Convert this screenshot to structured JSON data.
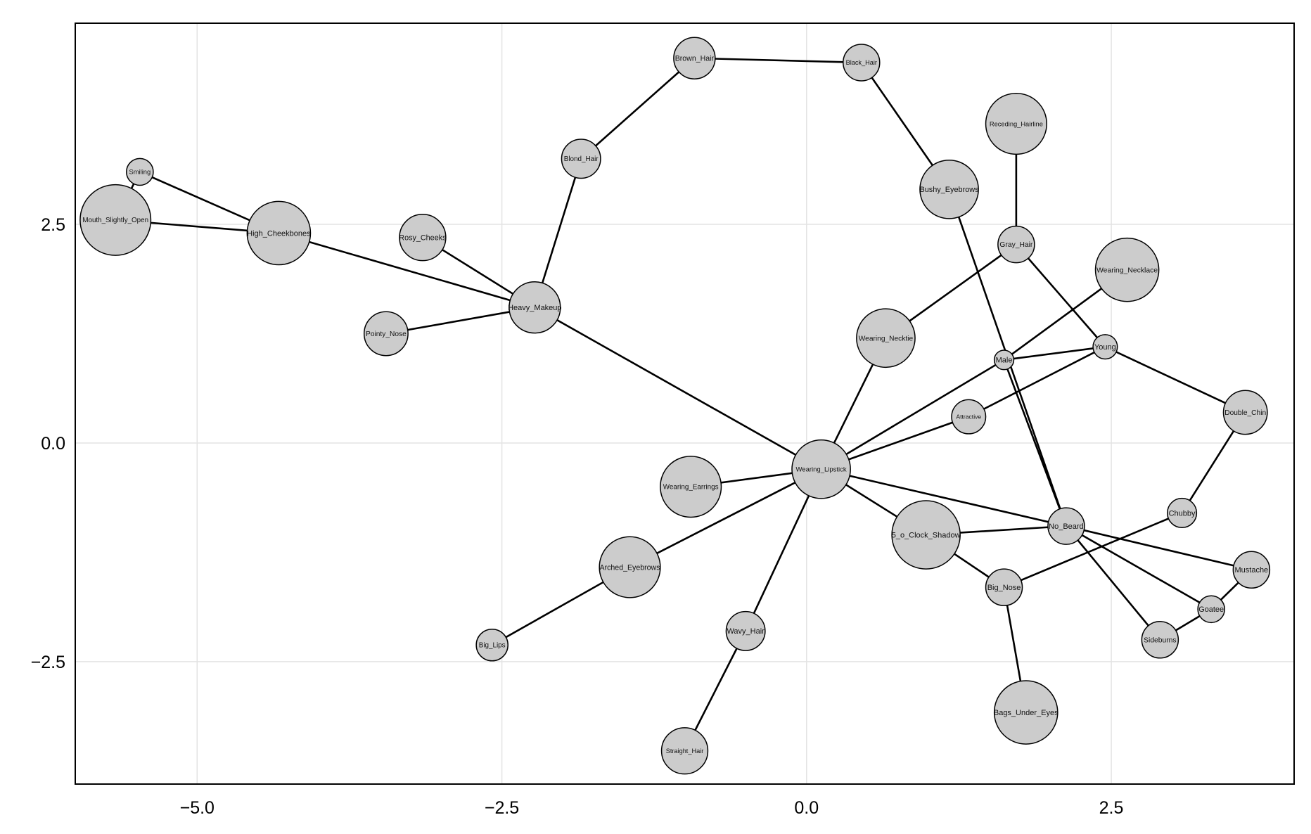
{
  "chart_data": {
    "type": "network",
    "title": "",
    "xlabel": "",
    "ylabel": "",
    "xlim": [
      -6.0,
      4.0
    ],
    "ylim": [
      -3.9,
      4.8
    ],
    "xticks": [
      -5.0,
      -2.5,
      0.0,
      2.5
    ],
    "yticks": [
      -2.5,
      0.0,
      2.5
    ],
    "xtick_labels": [
      "−5.0",
      "−2.5",
      "0.0",
      "2.5"
    ],
    "ytick_labels": [
      "−2.5",
      "0.0",
      "2.5"
    ],
    "grid": true,
    "colors": {
      "node_fill": "#cccccc",
      "node_stroke": "#000000",
      "edge": "#000000",
      "grid": "#e3e3e3"
    },
    "nodes": [
      {
        "id": "Mouth_Slightly_Open",
        "x": -5.67,
        "y": 2.55,
        "size": 0.29
      },
      {
        "id": "Smiling",
        "x": -5.47,
        "y": 3.1,
        "size": 0.11
      },
      {
        "id": "High_Cheekbones",
        "x": -4.33,
        "y": 2.4,
        "size": 0.26
      },
      {
        "id": "Rosy_Cheeks",
        "x": -3.15,
        "y": 2.35,
        "size": 0.19
      },
      {
        "id": "Pointy_Nose",
        "x": -3.45,
        "y": 1.25,
        "size": 0.18
      },
      {
        "id": "Heavy_Makeup",
        "x": -2.23,
        "y": 1.55,
        "size": 0.21
      },
      {
        "id": "Blond_Hair",
        "x": -1.85,
        "y": 3.25,
        "size": 0.16
      },
      {
        "id": "Brown_Hair",
        "x": -0.92,
        "y": 4.4,
        "size": 0.17
      },
      {
        "id": "Black_Hair",
        "x": 0.45,
        "y": 4.35,
        "size": 0.15
      },
      {
        "id": "Receding_Hairline",
        "x": 1.72,
        "y": 3.65,
        "size": 0.25
      },
      {
        "id": "Bushy_Eyebrows",
        "x": 1.17,
        "y": 2.9,
        "size": 0.24
      },
      {
        "id": "Gray_Hair",
        "x": 1.72,
        "y": 2.27,
        "size": 0.15
      },
      {
        "id": "Wearing_Necklace",
        "x": 2.63,
        "y": 1.98,
        "size": 0.26
      },
      {
        "id": "Wearing_Necktie",
        "x": 0.65,
        "y": 1.2,
        "size": 0.24
      },
      {
        "id": "Male",
        "x": 1.62,
        "y": 0.95,
        "size": 0.08
      },
      {
        "id": "Young",
        "x": 2.45,
        "y": 1.1,
        "size": 0.1
      },
      {
        "id": "Attractive",
        "x": 1.33,
        "y": 0.3,
        "size": 0.14
      },
      {
        "id": "Double_Chin",
        "x": 3.6,
        "y": 0.35,
        "size": 0.18
      },
      {
        "id": "Wearing_Lipstick",
        "x": 0.12,
        "y": -0.3,
        "size": 0.24
      },
      {
        "id": "Wearing_Earrings",
        "x": -0.95,
        "y": -0.5,
        "size": 0.25
      },
      {
        "id": "Arched_Eyebrows",
        "x": -1.45,
        "y": -1.42,
        "size": 0.25
      },
      {
        "id": "Big_Lips",
        "x": -2.58,
        "y": -2.31,
        "size": 0.13
      },
      {
        "id": "Wavy_Hair",
        "x": -0.5,
        "y": -2.15,
        "size": 0.16
      },
      {
        "id": "Straight_Hair",
        "x": -1.0,
        "y": -3.52,
        "size": 0.19
      },
      {
        "id": "5_o_Clock_Shadow",
        "x": 0.98,
        "y": -1.05,
        "size": 0.28
      },
      {
        "id": "No_Beard",
        "x": 2.13,
        "y": -0.95,
        "size": 0.15
      },
      {
        "id": "Chubby",
        "x": 3.08,
        "y": -0.8,
        "size": 0.12
      },
      {
        "id": "Big_Nose",
        "x": 1.62,
        "y": -1.65,
        "size": 0.15
      },
      {
        "id": "Mustache",
        "x": 3.65,
        "y": -1.45,
        "size": 0.15
      },
      {
        "id": "Goatee",
        "x": 3.32,
        "y": -1.9,
        "size": 0.11
      },
      {
        "id": "Sideburns",
        "x": 2.9,
        "y": -2.25,
        "size": 0.15
      },
      {
        "id": "Bags_Under_Eyes",
        "x": 1.8,
        "y": -3.08,
        "size": 0.26
      }
    ],
    "edges": [
      [
        "Mouth_Slightly_Open",
        "Smiling"
      ],
      [
        "Smiling",
        "High_Cheekbones"
      ],
      [
        "Mouth_Slightly_Open",
        "High_Cheekbones"
      ],
      [
        "High_Cheekbones",
        "Heavy_Makeup"
      ],
      [
        "Rosy_Cheeks",
        "Heavy_Makeup"
      ],
      [
        "Pointy_Nose",
        "Heavy_Makeup"
      ],
      [
        "Heavy_Makeup",
        "Blond_Hair"
      ],
      [
        "Blond_Hair",
        "Brown_Hair"
      ],
      [
        "Brown_Hair",
        "Black_Hair"
      ],
      [
        "Black_Hair",
        "Bushy_Eyebrows"
      ],
      [
        "Bushy_Eyebrows",
        "No_Beard"
      ],
      [
        "Heavy_Makeup",
        "Wearing_Lipstick"
      ],
      [
        "Receding_Hairline",
        "Gray_Hair"
      ],
      [
        "Gray_Hair",
        "Wearing_Necktie"
      ],
      [
        "Gray_Hair",
        "Young"
      ],
      [
        "Wearing_Necklace",
        "Male"
      ],
      [
        "Male",
        "Young"
      ],
      [
        "Male",
        "No_Beard"
      ],
      [
        "Male",
        "Wearing_Lipstick"
      ],
      [
        "Young",
        "Attractive"
      ],
      [
        "Young",
        "Double_Chin"
      ],
      [
        "Attractive",
        "Wearing_Lipstick"
      ],
      [
        "Double_Chin",
        "Chubby"
      ],
      [
        "Wearing_Necktie",
        "Wearing_Lipstick"
      ],
      [
        "Wearing_Lipstick",
        "Wearing_Earrings"
      ],
      [
        "Wearing_Lipstick",
        "Arched_Eyebrows"
      ],
      [
        "Arched_Eyebrows",
        "Big_Lips"
      ],
      [
        "Wearing_Lipstick",
        "Wavy_Hair"
      ],
      [
        "Wavy_Hair",
        "Straight_Hair"
      ],
      [
        "Wearing_Lipstick",
        "5_o_Clock_Shadow"
      ],
      [
        "Wearing_Lipstick",
        "No_Beard"
      ],
      [
        "5_o_Clock_Shadow",
        "No_Beard"
      ],
      [
        "5_o_Clock_Shadow",
        "Big_Nose"
      ],
      [
        "Big_Nose",
        "Chubby"
      ],
      [
        "Big_Nose",
        "Bags_Under_Eyes"
      ],
      [
        "No_Beard",
        "Mustache"
      ],
      [
        "No_Beard",
        "Goatee"
      ],
      [
        "No_Beard",
        "Sideburns"
      ],
      [
        "Mustache",
        "Goatee"
      ],
      [
        "Goatee",
        "Sideburns"
      ]
    ]
  }
}
